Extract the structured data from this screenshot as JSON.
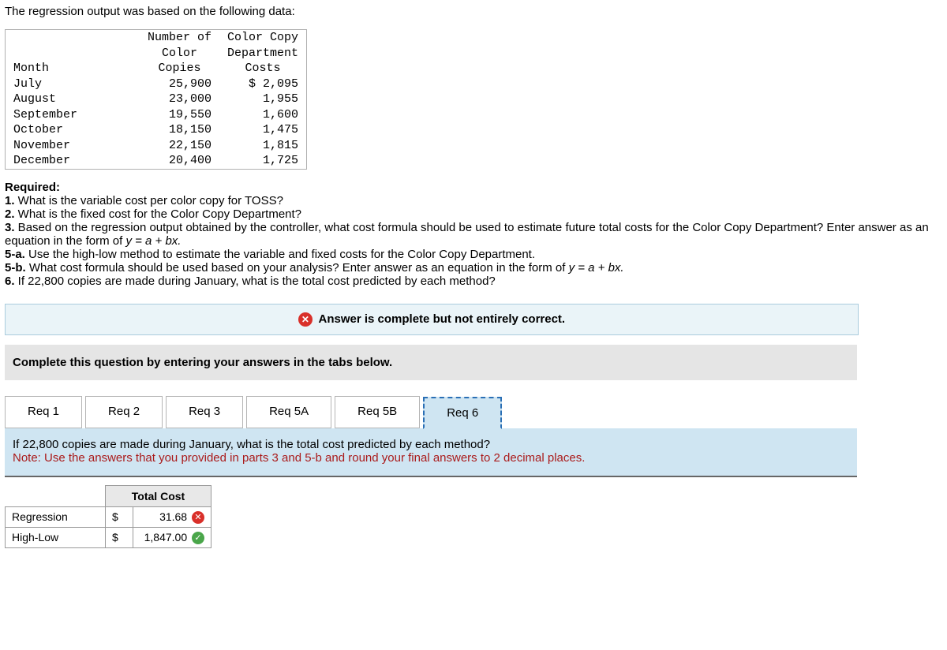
{
  "intro": "The regression output was based on the following data:",
  "table": {
    "col_month": "Month",
    "col_copies_l1": "Number of",
    "col_copies_l2": "Color",
    "col_copies_l3": "Copies",
    "col_cost_l1": "Color Copy",
    "col_cost_l2": "Department",
    "col_cost_l3": "Costs",
    "rows": [
      {
        "month": "July",
        "copies": "25,900",
        "cost": "$ 2,095"
      },
      {
        "month": "August",
        "copies": "23,000",
        "cost": "1,955"
      },
      {
        "month": "September",
        "copies": "19,550",
        "cost": "1,600"
      },
      {
        "month": "October",
        "copies": "18,150",
        "cost": "1,475"
      },
      {
        "month": "November",
        "copies": "22,150",
        "cost": "1,815"
      },
      {
        "month": "December",
        "copies": "20,400",
        "cost": "1,725"
      }
    ]
  },
  "required_heading": "Required:",
  "q1_b": "1.",
  "q1": " What is the variable cost per color copy for TOSS?",
  "q2_b": "2.",
  "q2": " What is the fixed cost for the Color Copy Department?",
  "q3_b": "3.",
  "q3a": " Based on the regression output obtained by the controller, what cost formula should be used to estimate future total costs for the Color Copy Department? Enter answer as an equation in the form of ",
  "q3_eq": "y = a + bx.",
  "q5a_b": "5-a.",
  "q5a": " Use the high-low method to estimate the variable and fixed costs for the Color Copy Department.",
  "q5b_b": "5-b.",
  "q5b": " What cost formula should be used based on your analysis? Enter answer as an equation in the form of ",
  "q5b_eq": "y = a + bx.",
  "q6_b": "6.",
  "q6": " If 22,800 copies are made during January, what is the total cost predicted by each method?",
  "banner_text": " Answer is complete but not entirely correct.",
  "instruction": "Complete this question by entering your answers in the tabs below.",
  "tabs": {
    "t1": "Req 1",
    "t2": "Req 2",
    "t3": "Req 3",
    "t4": "Req 5A",
    "t5": "Req 5B",
    "t6": "Req 6"
  },
  "panel": {
    "question": "If 22,800 copies are made during January, what is the total cost predicted by each method?",
    "note": "Note: Use the answers that you provided in parts 3 and 5-b and round your final answers to 2 decimal places."
  },
  "answer": {
    "header": "Total Cost",
    "rows": [
      {
        "label": "Regression",
        "currency": "$",
        "value": "31.68",
        "correct": false
      },
      {
        "label": "High-Low",
        "currency": "$",
        "value": "1,847.00",
        "correct": true
      }
    ]
  },
  "colors": {
    "banner_bg": "#eaf4f8",
    "banner_border": "#aaccdd",
    "gray_band": "#e5e5e5",
    "active_tab": "#cfe5f2",
    "wrong": "#d9302a",
    "right": "#4aa64a",
    "note": "#aa1a1a"
  }
}
